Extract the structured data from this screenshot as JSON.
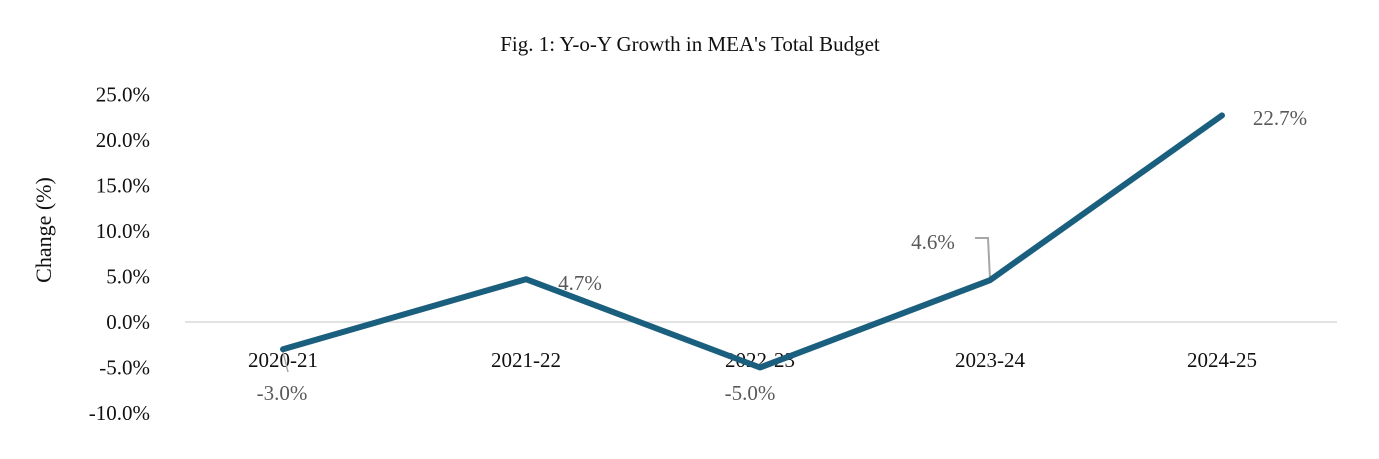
{
  "chart_data": {
    "type": "line",
    "title": "Fig. 1: Y-o-Y Growth in MEA's Total Budget",
    "xlabel": "",
    "ylabel": "Change (%)",
    "categories": [
      "2020-21",
      "2021-22",
      "2022-23",
      "2023-24",
      "2024-25"
    ],
    "series": [
      {
        "name": "Y-o-Y Growth",
        "values": [
          -3.0,
          4.7,
          -5.0,
          4.6,
          22.7
        ],
        "color": "#1b5f7e"
      }
    ],
    "data_labels": [
      "-3.0%",
      "4.7%",
      "-5.0%",
      "4.6%",
      "22.7%"
    ],
    "yticks": [
      "25.0%",
      "20.0%",
      "15.0%",
      "10.0%",
      "5.0%",
      "0.0%",
      "-5.0%",
      "-10.0%"
    ],
    "ytick_values": [
      25,
      20,
      15,
      10,
      5,
      0,
      -5,
      -10
    ],
    "ylim": [
      -10,
      25
    ],
    "grid": false,
    "legend": "none"
  }
}
